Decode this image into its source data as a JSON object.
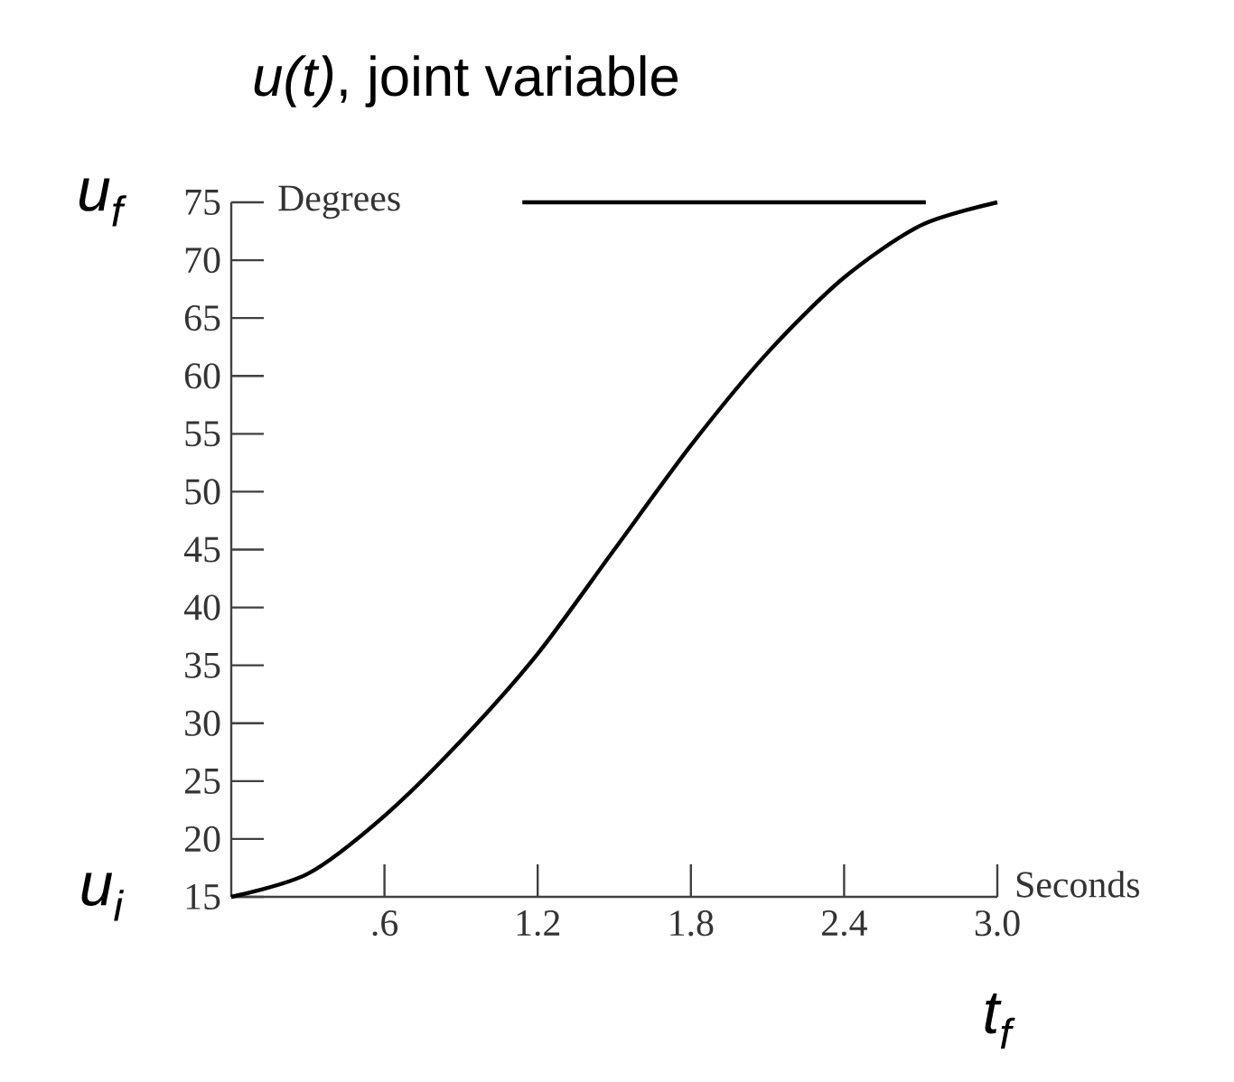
{
  "chart_data": {
    "type": "line",
    "title": "*u(t)*, joint variable",
    "xlabel": "Seconds",
    "ylabel": "Degrees",
    "x": [
      0,
      0.3,
      0.6,
      0.9,
      1.2,
      1.5,
      1.8,
      2.1,
      2.4,
      2.7,
      3.0
    ],
    "series": [
      {
        "color": "#000000",
        "values": [
          15,
          17,
          22,
          28.5,
          36,
          45,
          54,
          62,
          68.5,
          73,
          75
        ]
      },
      {
        "type": "line",
        "color": "#000000",
        "x": [
          1.14,
          2.72
        ],
        "values": [
          75,
          75
        ]
      }
    ],
    "xlim": [
      0,
      3.0
    ],
    "ylim": [
      15,
      75
    ],
    "xticks": [
      {
        "value": 0.6,
        "label": ".6"
      },
      {
        "value": 1.2,
        "label": "1.2"
      },
      {
        "value": 1.8,
        "label": "1.8"
      },
      {
        "value": 2.4,
        "label": "2.4"
      },
      {
        "value": 3.0,
        "label": "3.0"
      }
    ],
    "yticks": [
      15,
      20,
      25,
      30,
      35,
      40,
      45,
      50,
      55,
      60,
      65,
      70,
      75
    ],
    "grid": false,
    "annotations": [
      "u$_{f}$",
      "u$_{i}$",
      "t$_{f}$"
    ]
  }
}
